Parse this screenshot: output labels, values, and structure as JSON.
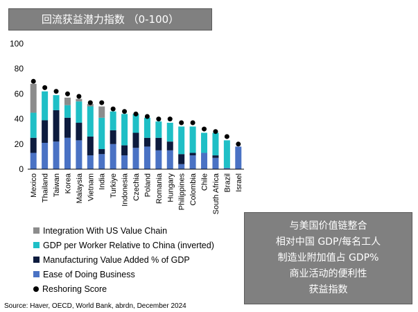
{
  "title": "回流获益潜力指数 （0-100）",
  "source": "Source: Haver, OECD, World Bank, abrdn, December 2024",
  "note_lines": [
    "与美国价值链整合",
    "相对中国 GDP/每名工人",
    "制造业附加值占 GDP%",
    "商业活动的便利性",
    "获益指数"
  ],
  "colors": {
    "integration": "#8c8c8c",
    "gdp_per_worker": "#1fbfc6",
    "manufacturing": "#0d1b3e",
    "ease": "#4a72c4",
    "score": "#000000"
  },
  "chart_data": {
    "type": "bar",
    "stacked": true,
    "ylim": [
      0,
      100
    ],
    "yticks": [
      0,
      20,
      40,
      60,
      80,
      100
    ],
    "categories": [
      "Mexico",
      "Thailand",
      "Taiwan",
      "Korea",
      "Malaysia",
      "Vietnam",
      "India",
      "Turkiye",
      "Indonesia",
      "Czechia",
      "Poland",
      "Romania",
      "Hungary",
      "Philippines",
      "Colombia",
      "Chile",
      "South Africa",
      "Brazil",
      "Israel"
    ],
    "series": [
      {
        "name": "Ease of Doing Business",
        "key": "ease",
        "values": [
          13,
          21,
          22,
          25,
          23,
          11,
          12,
          20,
          11,
          17,
          18,
          15,
          15,
          4,
          11,
          13,
          9,
          1,
          18
        ]
      },
      {
        "name": "Manufacturing Value Added % of GDP",
        "key": "manufacturing",
        "values": [
          12,
          18,
          25,
          16,
          14,
          15,
          4,
          11,
          8,
          12,
          7,
          10,
          7,
          8,
          2,
          0,
          2,
          0,
          0
        ]
      },
      {
        "name": "GDP per Worker Relative to China (inverted)",
        "key": "gdp_per_worker",
        "values": [
          20,
          23,
          12,
          10,
          17,
          24,
          25,
          15,
          25,
          15,
          16,
          13,
          15,
          22,
          21,
          16,
          18,
          22,
          0
        ]
      },
      {
        "name": "Integration With US Value Chain",
        "key": "integration",
        "values": [
          23,
          0,
          0,
          6,
          2,
          2,
          9,
          0,
          0,
          0,
          0,
          0,
          0,
          0,
          0,
          0,
          0,
          0,
          0
        ]
      }
    ],
    "scores": {
      "name": "Reshoring Score",
      "values": [
        70,
        65,
        62,
        60,
        58,
        53,
        53,
        48,
        46,
        44,
        42,
        40,
        40,
        37,
        37,
        32,
        30,
        26,
        20
      ]
    },
    "legend": [
      {
        "label": "Integration With US Value Chain",
        "key": "integration"
      },
      {
        "label": "GDP per Worker Relative to China (inverted)",
        "key": "gdp_per_worker"
      },
      {
        "label": "Manufacturing Value Added % of GDP",
        "key": "manufacturing"
      },
      {
        "label": "Ease of Doing Business",
        "key": "ease"
      },
      {
        "label": "Reshoring Score",
        "key": "score"
      }
    ]
  }
}
